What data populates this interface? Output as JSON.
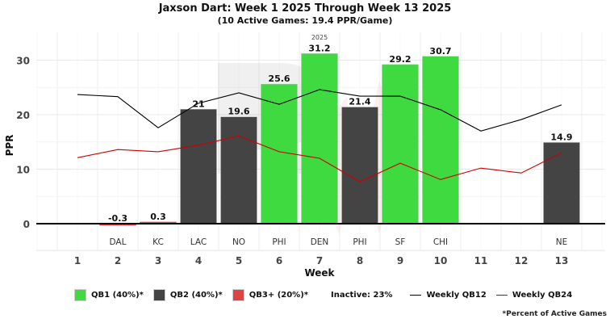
{
  "chart_data": {
    "type": "bar",
    "title": "Jaxson Dart: Week 1 2025 Through Week 13 2025",
    "subtitle": "(10 Active Games: 19.4 PPR/Game)",
    "season_label": "2025",
    "xlabel": "Week",
    "ylabel": "PPR",
    "ylim": [
      -5,
      33
    ],
    "yticks": [
      0,
      10,
      20,
      30
    ],
    "grid": true,
    "weeks": [
      1,
      2,
      3,
      4,
      5,
      6,
      7,
      8,
      9,
      10,
      11,
      12,
      13
    ],
    "bars": [
      {
        "week": 2,
        "opponent": "DAL",
        "value": -0.3,
        "label": "-0.3",
        "tier": "QB3+"
      },
      {
        "week": 3,
        "opponent": "KC",
        "value": 0.3,
        "label": "0.3",
        "tier": "QB3+"
      },
      {
        "week": 4,
        "opponent": "LAC",
        "value": 21,
        "label": "21",
        "tier": "QB2"
      },
      {
        "week": 5,
        "opponent": "NO",
        "value": 19.6,
        "label": "19.6",
        "tier": "QB2"
      },
      {
        "week": 6,
        "opponent": "PHI",
        "value": 25.6,
        "label": "25.6",
        "tier": "QB1"
      },
      {
        "week": 7,
        "opponent": "DEN",
        "value": 31.2,
        "label": "31.2",
        "tier": "QB1"
      },
      {
        "week": 8,
        "opponent": "PHI",
        "value": 21.4,
        "label": "21.4",
        "tier": "QB2"
      },
      {
        "week": 9,
        "opponent": "SF",
        "value": 29.2,
        "label": "29.2",
        "tier": "QB1"
      },
      {
        "week": 10,
        "opponent": "CHI",
        "value": 30.7,
        "label": "30.7",
        "tier": "QB1"
      },
      {
        "week": 13,
        "opponent": "NE",
        "value": 14.9,
        "label": "14.9",
        "tier": "QB2"
      }
    ],
    "series": [
      {
        "name": "Weekly QB12",
        "color": "#000000",
        "x": [
          1,
          2,
          3,
          4,
          5,
          6,
          7,
          8,
          9,
          10,
          11,
          12,
          13
        ],
        "values": [
          23.7,
          23.3,
          17.6,
          22.1,
          24.0,
          21.9,
          24.6,
          23.4,
          23.4,
          20.9,
          17.0,
          19.1,
          21.8
        ]
      },
      {
        "name": "Weekly QB24",
        "color": "#cc0000",
        "x": [
          1,
          2,
          3,
          4,
          5,
          6,
          7,
          8,
          9,
          10,
          11,
          12,
          13
        ],
        "values": [
          12.1,
          13.6,
          13.2,
          14.4,
          16.1,
          13.2,
          12.0,
          7.7,
          11.1,
          8.1,
          10.2,
          9.3,
          13.0
        ]
      }
    ],
    "tier_colors": {
      "QB1": "#3fd940",
      "QB2": "#444444",
      "QB3+": "#dd4444"
    },
    "legend": {
      "placement": "bottom",
      "items": [
        {
          "label": "QB1 (40%)*",
          "color": "#3fd940"
        },
        {
          "label": "QB2 (40%)*",
          "color": "#444444"
        },
        {
          "label": "QB3+ (20%)*",
          "color": "#dd4444"
        }
      ],
      "inactive": "Inactive: 23%",
      "lines": [
        {
          "label": "Weekly QB12",
          "color": "#000000"
        },
        {
          "label": "Weekly QB24",
          "color": "#cc0000"
        }
      ]
    },
    "footnote": "*Percent of Active Games"
  }
}
